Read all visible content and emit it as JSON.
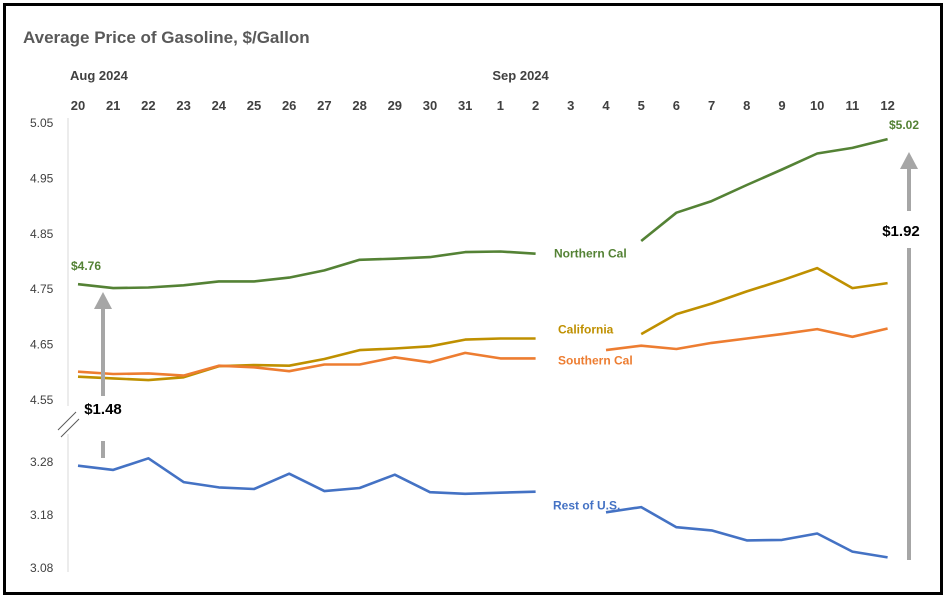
{
  "chart_data": {
    "type": "line",
    "title": "Average Price of Gasoline, $/Gallon",
    "month_labels": [
      {
        "label": "Aug 2024",
        "at_index": 0
      },
      {
        "label": "Sep 2024",
        "at_index": 12
      }
    ],
    "categories": [
      "20",
      "21",
      "22",
      "23",
      "24",
      "25",
      "26",
      "27",
      "28",
      "29",
      "30",
      "31",
      "1",
      "2",
      "3",
      "4",
      "5",
      "6",
      "7",
      "8",
      "9",
      "10",
      "11",
      "12"
    ],
    "upper_axis": {
      "ticks": [
        "5.05",
        "4.95",
        "4.85",
        "4.75",
        "4.65",
        "4.55"
      ],
      "ylim": [
        4.55,
        5.05
      ]
    },
    "lower_axis": {
      "ticks": [
        "3.28",
        "3.18",
        "3.08"
      ],
      "ylim": [
        3.08,
        3.28
      ]
    },
    "axis_break": true,
    "grid": false,
    "series": [
      {
        "name": "Northern Cal",
        "color": "#548235",
        "axis": "upper",
        "values": [
          4.759,
          4.752,
          4.753,
          4.757,
          4.764,
          4.764,
          4.771,
          4.784,
          4.803,
          4.805,
          4.808,
          4.817,
          4.818,
          4.814,
          null,
          null,
          4.837,
          4.888,
          4.909,
          4.938,
          4.966,
          4.995,
          5.005,
          5.021
        ]
      },
      {
        "name": "California",
        "color": "#BF9000",
        "axis": "upper",
        "values": [
          4.592,
          4.589,
          4.586,
          4.591,
          4.611,
          4.613,
          4.612,
          4.624,
          4.64,
          4.643,
          4.647,
          4.659,
          4.661,
          4.661,
          null,
          null,
          4.669,
          4.705,
          4.724,
          4.746,
          4.766,
          4.788,
          4.752,
          4.761
        ]
      },
      {
        "name": "Southern Cal",
        "color": "#ED7D31",
        "axis": "upper",
        "values": [
          4.601,
          4.597,
          4.598,
          4.594,
          4.612,
          4.609,
          4.602,
          4.614,
          4.614,
          4.627,
          4.618,
          4.635,
          4.625,
          4.625,
          null,
          4.64,
          4.648,
          4.642,
          4.653,
          4.661,
          4.669,
          4.678,
          4.664,
          4.679
        ]
      },
      {
        "name": "Rest of U.S.",
        "color": "#4472C4",
        "axis": "lower",
        "values": [
          3.273,
          3.265,
          3.287,
          3.242,
          3.232,
          3.229,
          3.258,
          3.225,
          3.231,
          3.256,
          3.223,
          3.22,
          3.222,
          3.224,
          null,
          3.185,
          3.195,
          3.157,
          3.151,
          3.132,
          3.133,
          3.145,
          3.111,
          3.1
        ]
      }
    ],
    "annotations": {
      "start_value": "$4.76",
      "end_value": "$5.02",
      "start_gap": "$1.48",
      "end_gap": "$1.92"
    }
  }
}
